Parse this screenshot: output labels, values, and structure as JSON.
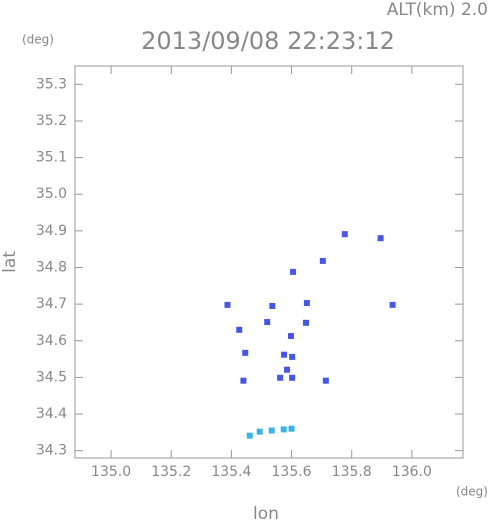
{
  "chart_data": {
    "type": "scatter",
    "title": "2013/09/08 22:23:12",
    "altitude_label": "ALT(km) 2.0",
    "y_unit": "(deg)",
    "x_unit": "(deg)",
    "x_label": "lon",
    "y_label": "lat",
    "xlim": [
      134.88,
      136.17
    ],
    "ylim": [
      34.28,
      35.35
    ],
    "xticks": [
      {
        "value": 135,
        "label": "135.0"
      },
      135.2,
      135.4,
      135.6,
      135.8,
      {
        "value": 136,
        "label": "136.0"
      }
    ],
    "yticks": [
      34.3,
      34.4,
      34.5,
      34.6,
      34.7,
      34.8,
      34.9,
      {
        "value": 35,
        "label": "35.0"
      },
      35.1,
      35.2,
      35.3
    ],
    "series": [
      {
        "color": "#4656e6",
        "x": [
          135.777,
          135.896,
          135.704,
          135.605,
          135.936,
          135.536,
          135.651,
          135.387,
          135.519,
          135.648,
          135.426,
          135.598,
          135.575,
          135.602,
          135.446,
          135.585,
          135.602,
          135.562,
          135.44,
          135.714
        ],
        "values": [
          34.891,
          34.88,
          34.818,
          34.788,
          34.698,
          34.695,
          34.703,
          34.698,
          34.651,
          34.649,
          34.63,
          34.613,
          34.562,
          34.556,
          34.567,
          34.521,
          34.499,
          34.499,
          34.491,
          34.491
        ]
      },
      {
        "color": "#3ab4e6",
        "x": [
          135.461,
          135.494,
          135.534,
          135.574,
          135.6
        ],
        "values": [
          34.341,
          34.352,
          34.355,
          34.358,
          34.36
        ]
      }
    ]
  }
}
